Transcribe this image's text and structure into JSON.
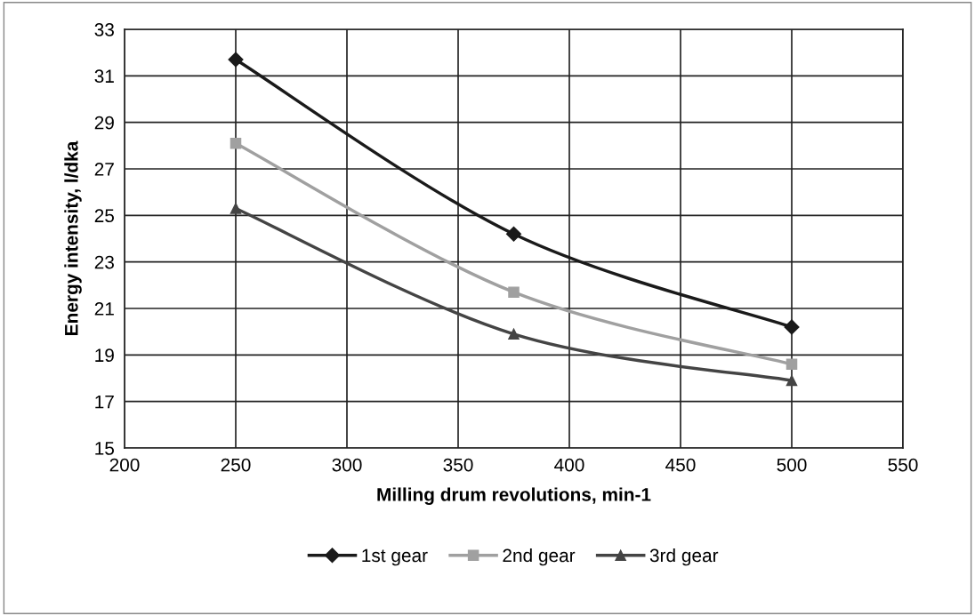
{
  "chart_data": {
    "type": "line",
    "xlabel": "Milling drum revolutions, min-1",
    "ylabel": "Energy intensity, l/dka",
    "x": [
      250,
      375,
      500
    ],
    "series": [
      {
        "name": "1st gear",
        "color": "#1a1a1a",
        "values": [
          31.7,
          24.2,
          20.2
        ],
        "marker": "diamond"
      },
      {
        "name": "2nd gear",
        "color": "#a0a0a0",
        "values": [
          28.1,
          21.7,
          18.6
        ],
        "marker": "square"
      },
      {
        "name": "3rd gear",
        "color": "#444444",
        "values": [
          25.3,
          19.9,
          17.9
        ],
        "marker": "triangle"
      }
    ],
    "xlim": [
      200,
      550
    ],
    "xticks": [
      200,
      250,
      300,
      350,
      400,
      450,
      500,
      550
    ],
    "ylim": [
      15,
      33
    ],
    "yticks": [
      15,
      17,
      19,
      21,
      23,
      25,
      27,
      29,
      31,
      33
    ],
    "grid": true,
    "legend": "bottom",
    "line_style": "solid"
  }
}
